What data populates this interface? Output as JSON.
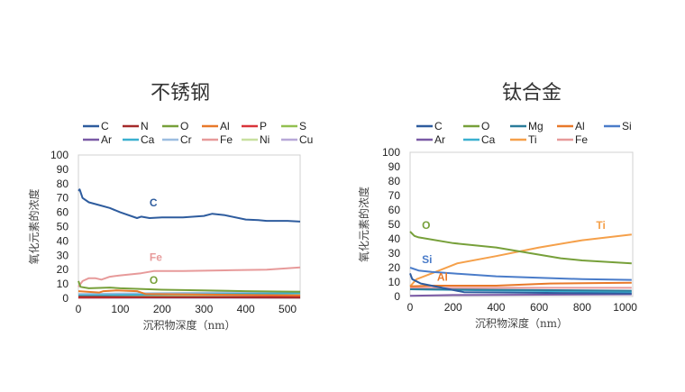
{
  "chart_data": [
    {
      "type": "line",
      "title": "不锈钢",
      "xlabel": "沉积物深度（nm）",
      "ylabel": "氧化元素的浓度",
      "xlim": [
        0,
        530
      ],
      "ylim": [
        0,
        100
      ],
      "xticks": [
        0,
        100,
        200,
        300,
        400,
        500
      ],
      "yticks": [
        0,
        10,
        20,
        30,
        40,
        50,
        60,
        70,
        80,
        90,
        100
      ],
      "legend_position": "top",
      "annotations": [
        {
          "text": "C",
          "x": 170,
          "y": 64,
          "color": "#2e5c9e"
        },
        {
          "text": "Fe",
          "x": 170,
          "y": 26,
          "color": "#e79a9a"
        },
        {
          "text": "O",
          "x": 170,
          "y": 10,
          "color": "#77a03a"
        }
      ],
      "series": [
        {
          "name": "C",
          "color": "#2e5c9e",
          "points": [
            [
              0,
              75
            ],
            [
              3,
              76
            ],
            [
              10,
              70
            ],
            [
              25,
              67
            ],
            [
              50,
              65
            ],
            [
              75,
              63
            ],
            [
              100,
              60
            ],
            [
              140,
              56
            ],
            [
              150,
              57
            ],
            [
              170,
              56
            ],
            [
              200,
              56.5
            ],
            [
              250,
              56.5
            ],
            [
              300,
              57.5
            ],
            [
              320,
              59
            ],
            [
              350,
              58
            ],
            [
              400,
              55
            ],
            [
              430,
              54.5
            ],
            [
              450,
              54
            ],
            [
              500,
              54
            ],
            [
              530,
              53.5
            ]
          ]
        },
        {
          "name": "N",
          "color": "#a52a2a",
          "points": [
            [
              0,
              1
            ],
            [
              530,
              0.5
            ]
          ]
        },
        {
          "name": "O",
          "color": "#77a03a",
          "points": [
            [
              0,
              12
            ],
            [
              5,
              8
            ],
            [
              25,
              7
            ],
            [
              75,
              7.5
            ],
            [
              100,
              7
            ],
            [
              200,
              6
            ],
            [
              300,
              5.5
            ],
            [
              400,
              5
            ],
            [
              530,
              4.5
            ]
          ]
        },
        {
          "name": "Al",
          "color": "#e8792a",
          "points": [
            [
              0,
              5
            ],
            [
              50,
              4
            ],
            [
              60,
              5
            ],
            [
              90,
              5.5
            ],
            [
              140,
              5
            ],
            [
              160,
              3
            ],
            [
              530,
              2
            ]
          ]
        },
        {
          "name": "P",
          "color": "#d9343a",
          "points": [
            [
              0,
              0.5
            ],
            [
              530,
              1
            ]
          ]
        },
        {
          "name": "S",
          "color": "#92c050",
          "points": [
            [
              0,
              1
            ],
            [
              530,
              1
            ]
          ]
        },
        {
          "name": "Ar",
          "color": "#7a5aa6",
          "points": [
            [
              0,
              0.5
            ],
            [
              530,
              0.5
            ]
          ]
        },
        {
          "name": "Ca",
          "color": "#3bb0d0",
          "points": [
            [
              0,
              2
            ],
            [
              530,
              3.5
            ]
          ]
        },
        {
          "name": "Cr",
          "color": "#9cbde0",
          "points": [
            [
              0,
              3
            ],
            [
              530,
              4.5
            ]
          ]
        },
        {
          "name": "Fe",
          "color": "#e79a9a",
          "points": [
            [
              0,
              8
            ],
            [
              10,
              12
            ],
            [
              25,
              14
            ],
            [
              40,
              14
            ],
            [
              55,
              13
            ],
            [
              75,
              15
            ],
            [
              100,
              16
            ],
            [
              150,
              17.5
            ],
            [
              180,
              19
            ],
            [
              250,
              19
            ],
            [
              350,
              19.5
            ],
            [
              450,
              20
            ],
            [
              530,
              21.5
            ]
          ]
        },
        {
          "name": "Ni",
          "color": "#c8e0a0",
          "points": [
            [
              0,
              2
            ],
            [
              530,
              2.5
            ]
          ]
        },
        {
          "name": "Cu",
          "color": "#b8a8d8",
          "points": [
            [
              0,
              1.5
            ],
            [
              530,
              1.5
            ]
          ]
        }
      ]
    },
    {
      "type": "line",
      "title": "钛合金",
      "xlabel": "沉积物深度（nm）",
      "ylabel": "氧化元素的浓度",
      "xlim": [
        0,
        1035
      ],
      "ylim": [
        0,
        100
      ],
      "xticks": [
        0,
        200,
        400,
        600,
        800,
        1000
      ],
      "yticks": [
        0,
        10,
        20,
        30,
        40,
        50,
        60,
        70,
        80,
        90,
        100
      ],
      "legend_position": "top",
      "annotations": [
        {
          "text": "O",
          "x": 55,
          "y": 47,
          "color": "#77a03a"
        },
        {
          "text": "Ti",
          "x": 865,
          "y": 47,
          "color": "#f5a04a"
        },
        {
          "text": "Si",
          "x": 55,
          "y": 23,
          "color": "#4a7cc9"
        },
        {
          "text": "Al",
          "x": 125,
          "y": 11,
          "color": "#e8792a"
        }
      ],
      "series": [
        {
          "name": "C",
          "color": "#2e5c9e",
          "points": [
            [
              0,
              16
            ],
            [
              10,
              12
            ],
            [
              50,
              9
            ],
            [
              150,
              6
            ],
            [
              250,
              3
            ],
            [
              1030,
              2
            ]
          ]
        },
        {
          "name": "O",
          "color": "#77a03a",
          "points": [
            [
              0,
              45
            ],
            [
              20,
              42
            ],
            [
              40,
              41
            ],
            [
              200,
              37
            ],
            [
              400,
              34
            ],
            [
              600,
              29
            ],
            [
              700,
              26.5
            ],
            [
              800,
              25
            ],
            [
              1030,
              23
            ]
          ]
        },
        {
          "name": "Mg",
          "color": "#2a7c9a",
          "points": [
            [
              0,
              5
            ],
            [
              1030,
              4
            ]
          ]
        },
        {
          "name": "Al",
          "color": "#e8792a",
          "points": [
            [
              0,
              7
            ],
            [
              100,
              7.5
            ],
            [
              400,
              7.5
            ],
            [
              650,
              9
            ],
            [
              1030,
              9.5
            ]
          ]
        },
        {
          "name": "Si",
          "color": "#4a7cc9",
          "points": [
            [
              0,
              20
            ],
            [
              40,
              18
            ],
            [
              100,
              17
            ],
            [
              200,
              16
            ],
            [
              400,
              14
            ],
            [
              600,
              13
            ],
            [
              800,
              12
            ],
            [
              1030,
              11.5
            ]
          ]
        },
        {
          "name": "Ar",
          "color": "#7a5aa6",
          "points": [
            [
              0,
              0.5
            ],
            [
              200,
              1
            ],
            [
              1030,
              1.5
            ]
          ]
        },
        {
          "name": "Ca",
          "color": "#3bb0d0",
          "points": [
            [
              0,
              5
            ],
            [
              1030,
              3
            ]
          ]
        },
        {
          "name": "Ti",
          "color": "#f5a04a",
          "points": [
            [
              0,
              7
            ],
            [
              30,
              12
            ],
            [
              100,
              16
            ],
            [
              220,
              23
            ],
            [
              400,
              28
            ],
            [
              600,
              34
            ],
            [
              800,
              39
            ],
            [
              1030,
              43
            ]
          ]
        },
        {
          "name": "Fe",
          "color": "#e79a9a",
          "points": [
            [
              0,
              6
            ],
            [
              500,
              6
            ],
            [
              1030,
              6
            ]
          ]
        }
      ]
    }
  ]
}
